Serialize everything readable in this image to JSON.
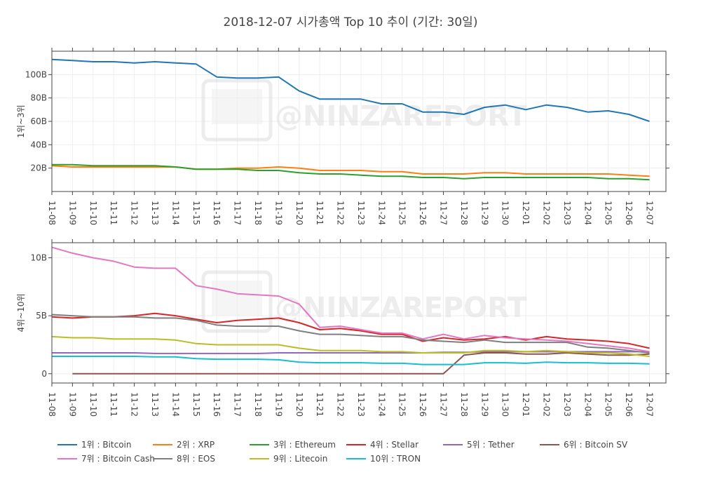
{
  "chart_data": {
    "type": "line",
    "title": "2018-12-07 시가총액 Top 10 추이 (기간: 30일)",
    "watermark": "@NINZAREPORT",
    "x": [
      "11-08",
      "11-09",
      "11-10",
      "11-11",
      "11-12",
      "11-13",
      "11-14",
      "11-15",
      "11-16",
      "11-17",
      "11-18",
      "11-19",
      "11-20",
      "11-21",
      "11-22",
      "11-23",
      "11-24",
      "11-25",
      "11-26",
      "11-27",
      "11-28",
      "11-29",
      "11-30",
      "12-01",
      "12-02",
      "12-03",
      "12-04",
      "12-05",
      "12-06",
      "12-07"
    ],
    "x_range": [
      0,
      29.8
    ],
    "panels": [
      {
        "ylabel": "1위~3위",
        "ylim": [
          0,
          120
        ],
        "yticks": [
          20,
          40,
          60,
          80,
          100
        ],
        "ytick_labels": [
          "20B",
          "40B",
          "60B",
          "80B",
          "100B"
        ],
        "unit": "B",
        "series": [
          {
            "name": "1위 : Bitcoin",
            "color": "#1f77b4",
            "values": [
              113,
              112,
              111,
              111,
              110,
              111,
              110,
              109,
              98,
              97,
              97,
              98,
              86,
              79,
              79,
              79,
              75,
              75,
              68,
              68,
              66,
              72,
              74,
              70,
              74,
              72,
              68,
              69,
              66,
              60
            ]
          },
          {
            "name": "2위 : XRP",
            "color": "#ff7f0e",
            "values": [
              22,
              21,
              21,
              21,
              21,
              21,
              21,
              19,
              19,
              20,
              20,
              21,
              20,
              18,
              18,
              18,
              17,
              17,
              15,
              15,
              15,
              16,
              16,
              15,
              15,
              15,
              15,
              15,
              14,
              13
            ]
          },
          {
            "name": "3위 : Ethereum",
            "color": "#2ca02c",
            "values": [
              23,
              23,
              22,
              22,
              22,
              22,
              21,
              19,
              19,
              19,
              18,
              18,
              16,
              15,
              15,
              14,
              13,
              13,
              12,
              12,
              11,
              12,
              12,
              12,
              12,
              12,
              12,
              11,
              11,
              10
            ]
          }
        ]
      },
      {
        "ylabel": "4위~10위",
        "ylim": [
          -0.8,
          11.3
        ],
        "yticks": [
          0,
          5,
          10
        ],
        "ytick_labels": [
          "0",
          "5B",
          "10B"
        ],
        "unit": "B",
        "series": [
          {
            "name": "4위 : Stellar",
            "color": "#d62728",
            "values": [
              4.9,
              4.8,
              4.9,
              4.9,
              5.0,
              5.2,
              5.0,
              4.7,
              4.4,
              4.6,
              4.7,
              4.8,
              4.4,
              3.8,
              3.9,
              3.7,
              3.4,
              3.4,
              2.8,
              3.1,
              2.9,
              3.0,
              3.2,
              2.9,
              3.2,
              3.0,
              2.9,
              2.8,
              2.6,
              2.2
            ]
          },
          {
            "name": "5위 : Tether",
            "color": "#9467bd",
            "values": [
              1.8,
              1.8,
              1.8,
              1.8,
              1.8,
              1.75,
              1.75,
              1.75,
              1.75,
              1.75,
              1.75,
              1.8,
              1.8,
              1.8,
              1.8,
              1.8,
              1.8,
              1.8,
              1.8,
              1.85,
              1.85,
              1.9,
              1.9,
              1.9,
              1.9,
              1.9,
              1.9,
              1.9,
              1.9,
              1.9
            ]
          },
          {
            "name": "6위 : Bitcoin SV",
            "color": "#8c564b",
            "values": [
              null,
              0,
              0,
              0,
              0,
              0,
              0,
              0,
              0,
              0,
              0,
              0,
              0,
              0,
              0,
              0,
              0,
              0,
              0,
              0,
              1.6,
              1.8,
              1.8,
              1.7,
              1.7,
              1.8,
              1.7,
              1.6,
              1.6,
              1.7
            ]
          },
          {
            "name": "7위 : Bitcoin Cash",
            "color": "#e377c2",
            "values": [
              10.9,
              10.4,
              10.0,
              9.7,
              9.2,
              9.1,
              9.1,
              7.6,
              7.3,
              6.9,
              6.8,
              6.7,
              6.0,
              4.0,
              4.1,
              3.8,
              3.5,
              3.5,
              3.0,
              3.4,
              3.0,
              3.3,
              3.1,
              3.0,
              2.9,
              2.8,
              2.6,
              2.4,
              2.2,
              1.9
            ]
          },
          {
            "name": "8위 : EOS",
            "color": "#7f7f7f",
            "values": [
              5.1,
              5.0,
              4.9,
              4.9,
              4.9,
              4.8,
              4.8,
              4.6,
              4.2,
              4.1,
              4.1,
              4.1,
              3.7,
              3.4,
              3.4,
              3.3,
              3.2,
              3.2,
              2.9,
              2.8,
              2.7,
              2.9,
              2.7,
              2.7,
              2.7,
              2.7,
              2.3,
              2.2,
              2.0,
              1.8
            ]
          },
          {
            "name": "9위 : Litecoin",
            "color": "#bcbd22",
            "values": [
              3.2,
              3.1,
              3.1,
              3.0,
              3.0,
              3.0,
              2.9,
              2.6,
              2.5,
              2.5,
              2.5,
              2.5,
              2.2,
              2.0,
              2.0,
              2.0,
              1.9,
              1.9,
              1.8,
              1.8,
              1.8,
              2.0,
              2.0,
              1.9,
              2.0,
              1.9,
              1.8,
              1.8,
              1.7,
              1.5
            ]
          },
          {
            "name": "10위 : TRON",
            "color": "#17becf",
            "values": [
              1.5,
              1.5,
              1.5,
              1.5,
              1.5,
              1.45,
              1.45,
              1.3,
              1.25,
              1.25,
              1.25,
              1.2,
              1.0,
              0.95,
              0.95,
              0.95,
              0.9,
              0.9,
              0.8,
              0.8,
              0.8,
              0.95,
              0.95,
              0.9,
              1.0,
              0.95,
              0.95,
              0.9,
              0.9,
              0.85
            ]
          }
        ]
      }
    ],
    "legend": {
      "placement": "bottom",
      "items": [
        "1위 : Bitcoin",
        "2위 : XRP",
        "3위 : Ethereum",
        "4위 : Stellar",
        "5위 : Tether",
        "6위 : Bitcoin SV",
        "7위 : Bitcoin Cash",
        "8위 : EOS",
        "9위 : Litecoin",
        "10위 : TRON"
      ]
    },
    "grid": true
  }
}
